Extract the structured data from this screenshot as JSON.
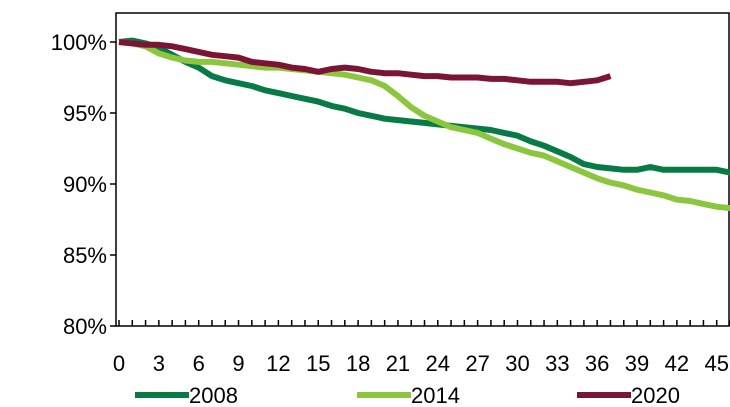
{
  "chart_data": {
    "type": "line",
    "title": "",
    "xlabel": "",
    "ylabel": "",
    "xlim": [
      0,
      46
    ],
    "ylim": [
      80,
      100
    ],
    "y_unit": "%",
    "x_ticks": [
      0,
      3,
      6,
      9,
      12,
      15,
      18,
      21,
      24,
      27,
      30,
      33,
      36,
      39,
      42,
      45
    ],
    "y_ticks": [
      80,
      85,
      90,
      95,
      100
    ],
    "y_tick_labels": [
      "80%",
      "85%",
      "90%",
      "95%",
      "100%"
    ],
    "grid": false,
    "legend_position": "bottom",
    "series": [
      {
        "name": "2008",
        "color": "#077a45",
        "x": [
          0,
          1,
          2,
          3,
          4,
          5,
          6,
          7,
          8,
          9,
          10,
          11,
          12,
          13,
          14,
          15,
          16,
          17,
          18,
          19,
          20,
          21,
          22,
          23,
          24,
          25,
          26,
          27,
          28,
          29,
          30,
          31,
          32,
          33,
          34,
          35,
          36,
          37,
          38,
          39,
          40,
          41,
          42,
          43,
          44,
          45,
          46
        ],
        "values": [
          100,
          100.1,
          99.9,
          99.6,
          99.1,
          98.6,
          98.2,
          97.6,
          97.3,
          97.1,
          96.9,
          96.6,
          96.4,
          96.2,
          96.0,
          95.8,
          95.5,
          95.3,
          95.0,
          94.8,
          94.6,
          94.5,
          94.4,
          94.3,
          94.2,
          94.1,
          94.0,
          93.9,
          93.8,
          93.6,
          93.4,
          93.0,
          92.7,
          92.3,
          91.9,
          91.4,
          91.2,
          91.1,
          91.0,
          91.0,
          91.2,
          91.0,
          91.0,
          91.0,
          91.0,
          91.0,
          90.8
        ]
      },
      {
        "name": "2014",
        "color": "#8cc63f",
        "x": [
          0,
          1,
          2,
          3,
          4,
          5,
          6,
          7,
          8,
          9,
          10,
          11,
          12,
          13,
          14,
          15,
          16,
          17,
          18,
          19,
          20,
          21,
          22,
          23,
          24,
          25,
          26,
          27,
          28,
          29,
          30,
          31,
          32,
          33,
          34,
          35,
          36,
          37,
          38,
          39,
          40,
          41,
          42,
          43,
          44,
          45,
          46
        ],
        "values": [
          100,
          99.9,
          99.7,
          99.2,
          98.9,
          98.7,
          98.6,
          98.6,
          98.5,
          98.4,
          98.3,
          98.2,
          98.2,
          98.1,
          98.0,
          97.9,
          97.8,
          97.7,
          97.5,
          97.3,
          96.9,
          96.2,
          95.4,
          94.8,
          94.4,
          94.0,
          93.8,
          93.6,
          93.2,
          92.8,
          92.5,
          92.2,
          92.0,
          91.6,
          91.2,
          90.8,
          90.4,
          90.1,
          89.9,
          89.6,
          89.4,
          89.2,
          88.9,
          88.8,
          88.6,
          88.4,
          88.3
        ]
      },
      {
        "name": "2020",
        "color": "#7b1535",
        "x": [
          0,
          1,
          2,
          3,
          4,
          5,
          6,
          7,
          8,
          9,
          10,
          11,
          12,
          13,
          14,
          15,
          16,
          17,
          18,
          19,
          20,
          21,
          22,
          23,
          24,
          25,
          26,
          27,
          28,
          29,
          30,
          31,
          32,
          33,
          34,
          35,
          36,
          37
        ],
        "values": [
          100,
          99.9,
          99.8,
          99.8,
          99.7,
          99.5,
          99.3,
          99.1,
          99.0,
          98.9,
          98.6,
          98.5,
          98.4,
          98.2,
          98.1,
          97.9,
          98.1,
          98.2,
          98.1,
          97.9,
          97.8,
          97.8,
          97.7,
          97.6,
          97.6,
          97.5,
          97.5,
          97.5,
          97.4,
          97.4,
          97.3,
          97.2,
          97.2,
          97.2,
          97.1,
          97.2,
          97.3,
          97.6
        ]
      }
    ]
  }
}
